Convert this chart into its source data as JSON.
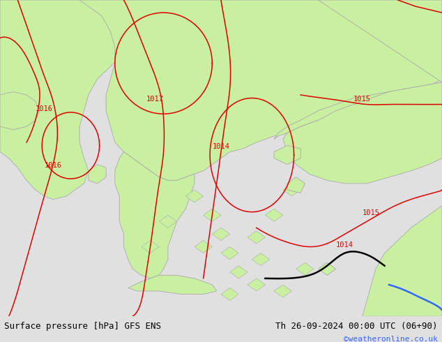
{
  "title_left": "Surface pressure [hPa] GFS ENS",
  "title_right": "Th 26-09-2024 00:00 UTC (06+90)",
  "title_credit": "©weatheronline.co.uk",
  "bg_color": "#e0e0e0",
  "land_color": "#c8f0a0",
  "sea_color": "#e0e0e0",
  "border_color": "#aaaaaa",
  "red": "#dd0000",
  "black": "#000000",
  "blue": "#3366ff",
  "font_size_title": 9,
  "font_size_label": 8,
  "figsize": [
    6.34,
    4.9
  ],
  "dpi": 100
}
